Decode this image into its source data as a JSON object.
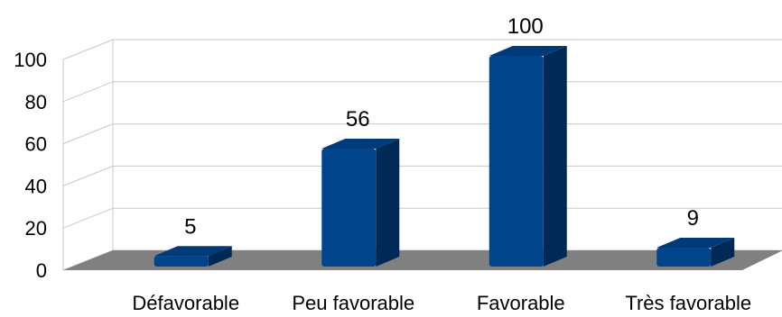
{
  "chart_data": {
    "type": "bar",
    "categories": [
      "Défavorable",
      "Peu favorable",
      "Favorable",
      "Très favorable"
    ],
    "values": [
      5,
      56,
      100,
      9
    ],
    "data_labels": [
      "5",
      "56",
      "100",
      "9"
    ],
    "title": "",
    "xlabel": "",
    "ylabel": "",
    "ylim": [
      0,
      100
    ],
    "yticks": [
      0,
      20,
      40,
      60,
      80,
      100
    ],
    "grid": true,
    "style": "3d",
    "colors": {
      "bar_front": "#00458c",
      "bar_side": "#002a55",
      "bar_top": "#003a78",
      "floor": "#808080",
      "grid": "#c8c8c8",
      "text": "#000000"
    }
  }
}
